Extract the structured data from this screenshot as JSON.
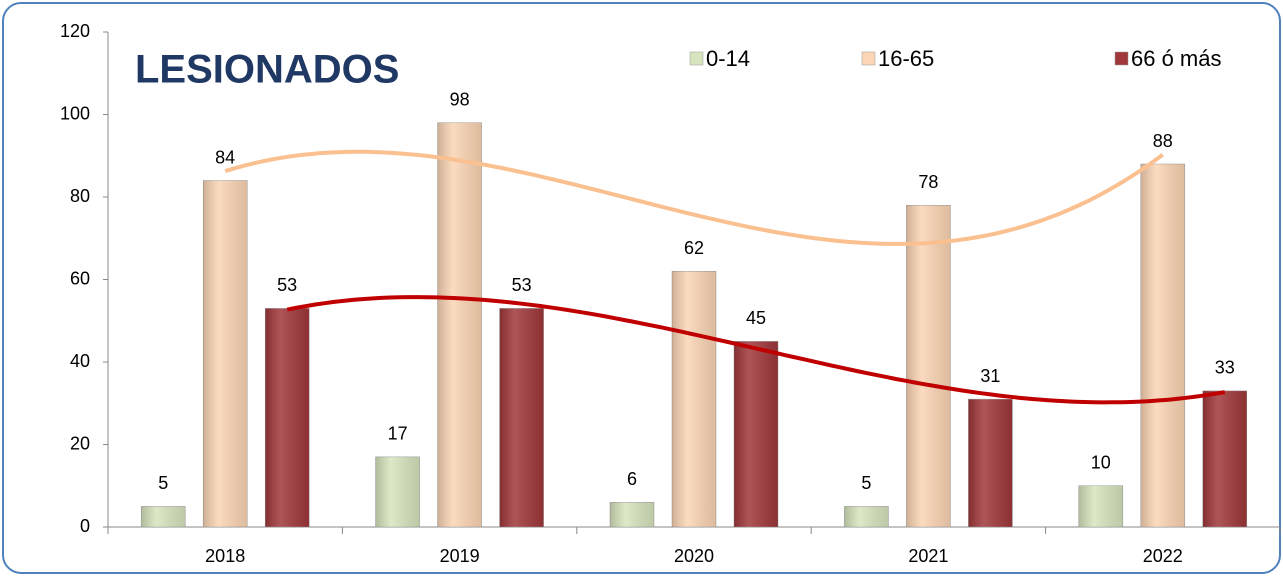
{
  "chart_data": {
    "type": "bar",
    "title": "LESIONADOS",
    "categories": [
      "2018",
      "2019",
      "2020",
      "2021",
      "2022"
    ],
    "series": [
      {
        "name": "0-14",
        "color": "#d7e4bd",
        "values": [
          5,
          17,
          6,
          5,
          10
        ]
      },
      {
        "name": "16-65",
        "color": "#fbd5b5",
        "values": [
          84,
          98,
          62,
          78,
          88
        ],
        "trendline_color": "#fac090"
      },
      {
        "name": "66 ó más",
        "color": "#a0373a",
        "values": [
          53,
          53,
          45,
          31,
          33
        ],
        "trendline_color": "#c00000"
      }
    ],
    "ylim": [
      0,
      120
    ],
    "yticks": [
      0,
      20,
      40,
      60,
      80,
      100,
      120
    ],
    "legend": "top-right",
    "grid": false
  }
}
